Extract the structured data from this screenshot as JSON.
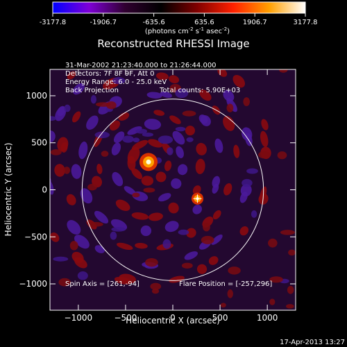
{
  "colorbar": {
    "ticks": [
      "-3177.8",
      "-1906.7",
      "-635.6",
      "635.6",
      "1906.7",
      "3177.8"
    ],
    "tick_values": [
      -3177.8,
      -1906.7,
      -635.6,
      635.6,
      1906.7,
      3177.8
    ],
    "range": [
      -3177.8,
      3177.8
    ],
    "unit_prefix": "(photons cm",
    "unit_sup1": "-2",
    "unit_mid": " s",
    "unit_sup2": "-1",
    "unit_mid2": " asec",
    "unit_sup3": "-2",
    "unit_suffix": ")",
    "colors": [
      "#0000ff",
      "#7f00d8",
      "#300030",
      "#000000",
      "#800000",
      "#ff2000",
      "#ffa000",
      "#ffffff"
    ]
  },
  "title": "Reconstructed RHESSI Image",
  "annotations": {
    "time": "31-Mar-2002 21:23:40.000 to 21:26:44.000",
    "detectors": "Detectors: 7F 8F 9F, Att 0",
    "energy": "Energy Range: 6.0 - 25.0 keV",
    "method": "Back Projection",
    "counts": "Total counts: 5.90E+03",
    "spin_axis": "Spin Axis = [261,-94]",
    "flare_position": "Flare Position = [-257,296]"
  },
  "timestamp": "17-Apr-2013 13:27",
  "chart_data": {
    "type": "heatmap",
    "title": "Reconstructed RHESSI Image",
    "xlabel": "Heliocentric X (arcsec)",
    "ylabel": "Heliocentric Y (arcsec)",
    "xlim": [
      -1300,
      1300
    ],
    "ylim": [
      -1280,
      1280
    ],
    "xticks": [
      -1000,
      -500,
      0,
      500,
      1000
    ],
    "yticks": [
      -1000,
      -500,
      0,
      500,
      1000
    ],
    "xtick_labels": [
      "−1000",
      "−500",
      "0",
      "500",
      "1000"
    ],
    "ytick_labels": [
      "−1000",
      "−500",
      "0",
      "500",
      "1000"
    ],
    "solar_limb_radius": 960,
    "sources": [
      {
        "x": -257,
        "y": 296,
        "intensity": 3177.8
      },
      {
        "x": 261,
        "y": -94,
        "intensity": 1900
      }
    ],
    "spin_axis_marker": [
      261,
      -94
    ]
  }
}
